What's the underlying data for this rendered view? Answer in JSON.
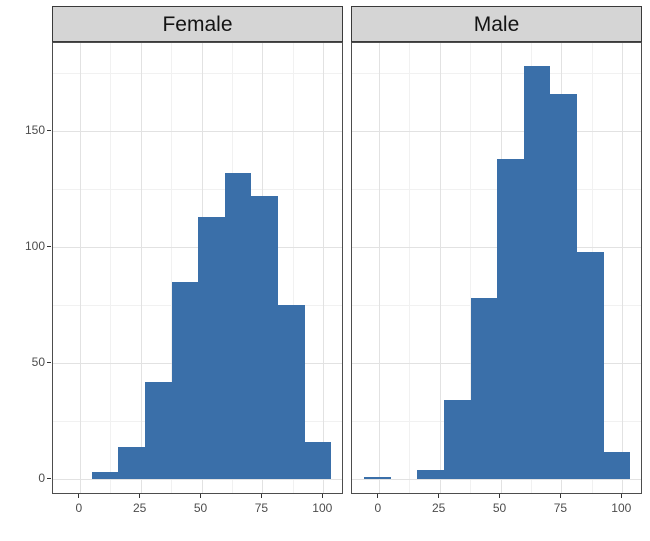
{
  "chart_data": {
    "type": "bar",
    "subtype": "faceted-histogram",
    "title": "",
    "xlabel": "",
    "ylabel": "",
    "legend": "none",
    "grid": "on",
    "facets": [
      {
        "label": "Female",
        "counts": [
          0,
          3,
          14,
          42,
          85,
          113,
          132,
          122,
          75,
          16
        ]
      },
      {
        "label": "Male",
        "counts": [
          1,
          0,
          4,
          34,
          78,
          138,
          178,
          166,
          98,
          12
        ]
      }
    ],
    "bin_start": -6.0,
    "bin_width": 10.93,
    "x_ticks": [
      0,
      25,
      50,
      75,
      100
    ],
    "x_minor_ticks": [
      12.5,
      37.5,
      62.5,
      87.5
    ],
    "y_ticks": [
      0,
      50,
      100,
      150
    ],
    "y_minor_ticks": [
      25,
      75,
      125,
      175
    ],
    "x_domain": [
      -11.0,
      108.5
    ],
    "y_domain": [
      -6.7,
      187.9
    ],
    "bar_color": "#3a6fa9"
  },
  "colors": {
    "background": "#ffffff",
    "strip_fill": "#d5d5d5",
    "strip_border": "#3a3a3a",
    "panel_border": "#4d4d4d",
    "grid_major": "#e2e2e2",
    "grid_minor": "#f1f1f1",
    "tick": "#333333",
    "tick_label": "#4d4d4d"
  }
}
